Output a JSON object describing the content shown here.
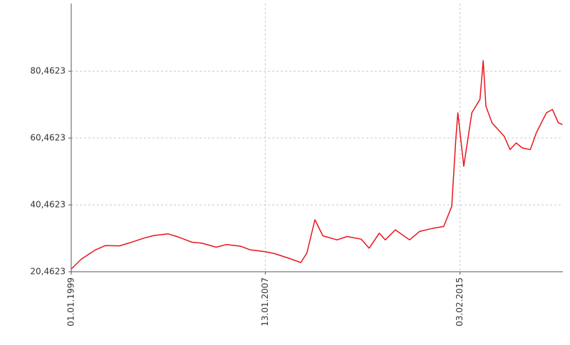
{
  "chart_data": {
    "type": "line",
    "x": [
      "01.01.1999",
      "01.06.1999",
      "01.01.2000",
      "01.06.2000",
      "01.01.2001",
      "01.06.2001",
      "01.01.2002",
      "01.06.2002",
      "01.01.2003",
      "01.06.2003",
      "01.01.2004",
      "01.06.2004",
      "01.01.2005",
      "01.06.2005",
      "01.01.2006",
      "01.06.2006",
      "01.01.2007",
      "01.06.2007",
      "01.01.2008",
      "01.07.2008",
      "01.10.2008",
      "01.02.2009",
      "01.06.2009",
      "01.01.2010",
      "01.06.2010",
      "01.01.2011",
      "01.05.2011",
      "01.10.2011",
      "01.01.2012",
      "01.06.2012",
      "01.01.2013",
      "01.06.2013",
      "01.01.2014",
      "01.06.2014",
      "01.10.2014",
      "01.12.2014",
      "01.01.2015",
      "01.04.2015",
      "01.08.2015",
      "01.12.2015",
      "20.01.2016",
      "01.03.2016",
      "01.06.2016",
      "01.12.2016",
      "01.03.2017",
      "01.06.2017",
      "01.09.2017",
      "01.01.2018",
      "01.04.2018",
      "01.09.2018",
      "01.12.2018",
      "01.03.2019",
      "01.05.2019"
    ],
    "series": [
      {
        "color": "#e8141b",
        "values": [
          21.3,
          24.2,
          27.0,
          28.3,
          28.2,
          29.1,
          30.5,
          31.3,
          31.8,
          30.9,
          29.3,
          29.0,
          27.8,
          28.6,
          28.1,
          27.0,
          26.5,
          25.9,
          24.5,
          23.2,
          26.0,
          36.0,
          31.2,
          30.0,
          31.0,
          30.2,
          27.5,
          32.0,
          30.0,
          33.0,
          30.0,
          32.5,
          33.5,
          34.0,
          40.0,
          60.0,
          68.0,
          52.0,
          68.0,
          72.0,
          83.6,
          70.0,
          65.0,
          61.0,
          57.0,
          59.0,
          57.5,
          57.0,
          62.0,
          68.0,
          69.0,
          65.0,
          64.5
        ]
      }
    ],
    "xlim": [
      "01.01.1999",
      "08.05.2019"
    ],
    "xticks": [
      "01.01.1999",
      "13.01.2007",
      "03.02.2015"
    ],
    "ylim": [
      20.4623,
      100.7
    ],
    "yticks": [
      {
        "value": 20.4623,
        "label": "20,4623"
      },
      {
        "value": 40.4623,
        "label": "40,4623"
      },
      {
        "value": 60.4623,
        "label": "60,4623"
      },
      {
        "value": 80.4623,
        "label": "80,4623"
      }
    ],
    "grid": true
  }
}
